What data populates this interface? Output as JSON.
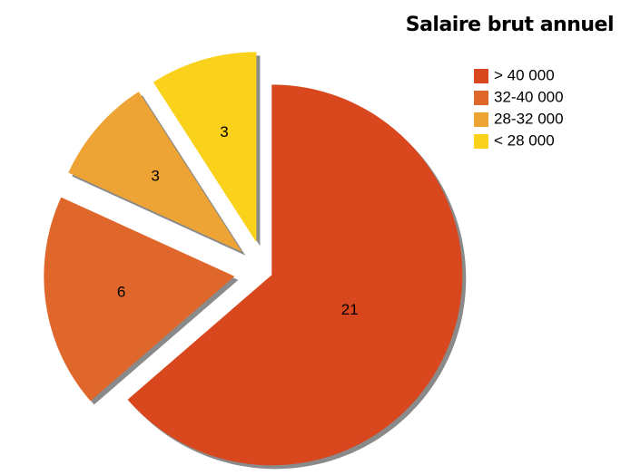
{
  "chart_data": {
    "type": "pie",
    "title": "Salaire brut annuel",
    "categories": [
      "> 40 000",
      "32-40 000",
      "28-32 000",
      "< 28 000"
    ],
    "values": [
      21,
      6,
      3,
      3
    ],
    "colors": [
      "#d9471f",
      "#e0672c",
      "#eea434",
      "#fbd21b"
    ],
    "legend": "top-right"
  }
}
